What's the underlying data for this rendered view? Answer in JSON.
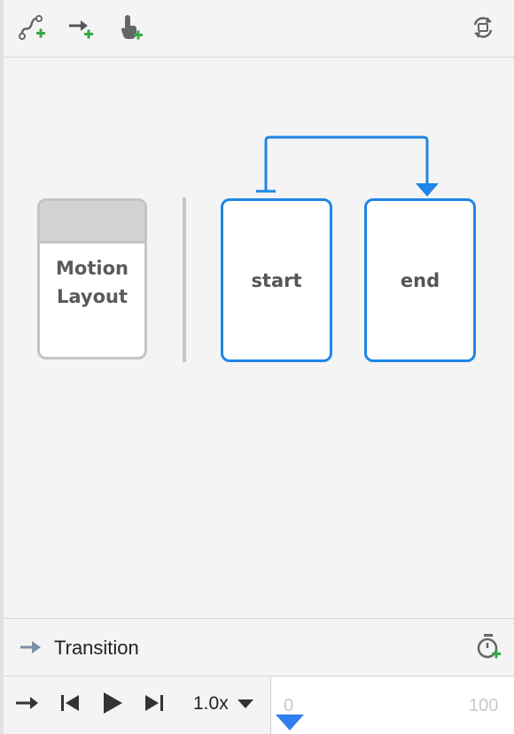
{
  "toolbar": {
    "icons": [
      "create-constraint-set-icon",
      "create-transition-icon",
      "create-click-handler-icon",
      "refresh-sync-icon"
    ]
  },
  "canvas": {
    "base_layout_label": "Motion\nLayout",
    "states": [
      {
        "id": "start",
        "label": "start"
      },
      {
        "id": "end",
        "label": "end"
      }
    ],
    "accent_color": "#1e86e6"
  },
  "transition_panel": {
    "title": "Transition"
  },
  "playback": {
    "speed": "1.0x",
    "timeline_start": "0",
    "timeline_end": "100"
  }
}
